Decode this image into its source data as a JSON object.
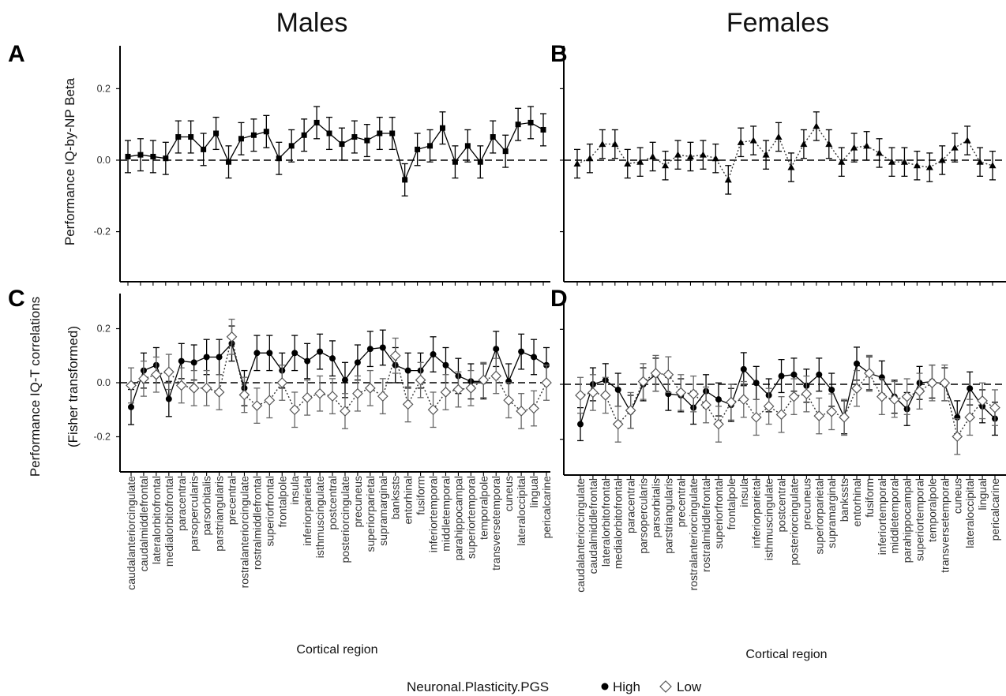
{
  "titles": {
    "left": "Males",
    "right": "Females"
  },
  "panel_letters": [
    "A",
    "B",
    "C",
    "D"
  ],
  "ylabels": {
    "top": "Performance IQ-by-NP Beta",
    "bottom_line1": "Performance IQ-T correlations",
    "bottom_line2": "(Fisher transformed)"
  },
  "xlabel": "Cortical region",
  "legend": {
    "title": "Neuronal.Plasticity.PGS",
    "high": "High",
    "low": "Low"
  },
  "chart_data": [
    {
      "panel": "A",
      "type": "scatter",
      "categories": [
        "caudalanteriorcingulate",
        "caudalmiddlefrontal",
        "lateralorbitofrontal",
        "medialorbitofrontal",
        "paracentral",
        "parsopercularis",
        "parsorbitalis",
        "parstriangularis",
        "precentral",
        "rostralanteriorcingulate",
        "rostralmiddlefrontal",
        "superiorfrontal",
        "frontalpole",
        "insula",
        "inferiorparietal",
        "isthmuscingulate",
        "postcentral",
        "posteriorcingulate",
        "precuneus",
        "superiorparietal",
        "supramarginal",
        "bankssts",
        "entorhinal",
        "fusiform",
        "inferiortemporal",
        "middletemporal",
        "parahippocampal",
        "superiortemporal",
        "temporalpole",
        "transversetemporal",
        "cuneus",
        "lateraloccipital",
        "lingual",
        "pericalcarine"
      ],
      "ylim": [
        -0.34,
        0.32
      ],
      "yticks": [
        -0.2,
        0.0,
        0.2
      ],
      "ytick_labels": [
        "-0.2",
        "0.0",
        "0.2"
      ],
      "series": [
        {
          "marker": "square",
          "line": "solid",
          "values": [
            0.01,
            0.015,
            0.01,
            0.005,
            0.065,
            0.065,
            0.03,
            0.075,
            -0.005,
            0.06,
            0.07,
            0.08,
            0.005,
            0.04,
            0.07,
            0.105,
            0.075,
            0.045,
            0.065,
            0.055,
            0.075,
            0.075,
            -0.055,
            0.03,
            0.04,
            0.09,
            -0.005,
            0.04,
            -0.005,
            0.065,
            0.025,
            0.1,
            0.105,
            0.085
          ],
          "err": 0.045
        }
      ]
    },
    {
      "panel": "B",
      "type": "scatter",
      "categories": [
        "caudalanteriorcingulate",
        "caudalmiddlefrontal",
        "lateralorbitofrontal",
        "medialorbitofrontal",
        "paracentral",
        "parsopercularis",
        "parsorbitalis",
        "parstriangularis",
        "precentral",
        "rostralanteriorcingulate",
        "rostralmiddlefrontal",
        "superiorfrontal",
        "frontalpole",
        "insula",
        "inferiorparietal",
        "isthmuscingulate",
        "postcentral",
        "posteriorcingulate",
        "precuneus",
        "superiorparietal",
        "supramarginal",
        "bankssts",
        "entorhinal",
        "fusiform",
        "inferiortemporal",
        "middletemporal",
        "parahippocampal",
        "superiortemporal",
        "temporalpole",
        "transversetemporal",
        "cuneus",
        "lateraloccipital",
        "lingual",
        "pericalcarine"
      ],
      "ylim": [
        -0.34,
        0.32
      ],
      "series": [
        {
          "marker": "triangle",
          "line": "dotted",
          "values": [
            -0.01,
            0.005,
            0.045,
            0.045,
            -0.01,
            -0.005,
            0.01,
            -0.015,
            0.015,
            0.01,
            0.015,
            0.005,
            -0.055,
            0.05,
            0.055,
            0.015,
            0.065,
            -0.02,
            0.045,
            0.095,
            0.045,
            -0.005,
            0.035,
            0.04,
            0.02,
            -0.005,
            -0.005,
            -0.015,
            -0.02,
            0.0,
            0.035,
            0.055,
            -0.005,
            -0.015
          ],
          "err": 0.04
        }
      ]
    },
    {
      "panel": "C",
      "type": "scatter",
      "categories": [
        "caudalanteriorcingulate",
        "caudalmiddlefrontal",
        "lateralorbitofrontal",
        "medialorbitofrontal",
        "paracentral",
        "parsopercularis",
        "parsorbitalis",
        "parstriangularis",
        "precentral",
        "rostralanteriorcingulate",
        "rostralmiddlefrontal",
        "superiorfrontal",
        "frontalpole",
        "insula",
        "inferiorparietal",
        "isthmuscingulate",
        "postcentral",
        "posteriorcingulate",
        "precuneus",
        "superiorparietal",
        "supramarginal",
        "bankssts",
        "entorhinal",
        "fusiform",
        "inferiortemporal",
        "middletemporal",
        "parahippocampal",
        "superiortemporal",
        "temporalpole",
        "transversetemporal",
        "cuneus",
        "lateraloccipital",
        "lingual",
        "pericalcarine"
      ],
      "ylim": [
        -0.33,
        0.33
      ],
      "yticks": [
        -0.2,
        0.0,
        0.2
      ],
      "ytick_labels": [
        "-0.2",
        "0.0",
        "0.2"
      ],
      "series": [
        {
          "name": "High",
          "marker": "filled-circle",
          "line": "solid",
          "values": [
            -0.09,
            0.045,
            0.065,
            -0.06,
            0.08,
            0.075,
            0.095,
            0.095,
            0.145,
            -0.02,
            0.11,
            0.11,
            0.045,
            0.11,
            0.08,
            0.115,
            0.09,
            0.01,
            0.075,
            0.125,
            0.13,
            0.065,
            0.045,
            0.045,
            0.105,
            0.065,
            0.025,
            0.005,
            0.005,
            0.125,
            0.005,
            0.115,
            0.095,
            0.065
          ],
          "err": 0.065
        },
        {
          "name": "Low",
          "marker": "open-diamond",
          "line": "dotted",
          "values": [
            -0.01,
            0.015,
            0.03,
            0.04,
            -0.01,
            -0.02,
            -0.02,
            -0.035,
            0.17,
            -0.045,
            -0.085,
            -0.065,
            0.0,
            -0.1,
            -0.055,
            -0.04,
            -0.05,
            -0.105,
            -0.04,
            -0.02,
            -0.05,
            0.1,
            -0.08,
            0.01,
            -0.1,
            -0.035,
            -0.025,
            -0.02,
            0.01,
            0.025,
            -0.065,
            -0.105,
            -0.095,
            0.0
          ],
          "err": 0.065
        }
      ]
    },
    {
      "panel": "D",
      "type": "scatter",
      "categories": [
        "caudalanteriorcingulate",
        "caudalmiddlefrontal",
        "lateralorbitofrontal",
        "medialorbitofrontal",
        "paracentral",
        "parsopercularis",
        "parsorbitalis",
        "parstriangularis",
        "precentral",
        "rostralanteriorcingulate",
        "rostralmiddlefrontal",
        "superiorfrontal",
        "frontalpole",
        "insula",
        "inferiorparietal",
        "isthmuscingulate",
        "postcentral",
        "posteriorcingulate",
        "precuneus",
        "superiorparietal",
        "supramarginal",
        "bankssts",
        "entorhinal",
        "fusiform",
        "inferiortemporal",
        "middletemporal",
        "parahippocampal",
        "superiortemporal",
        "temporalpole",
        "transversetemporal",
        "cuneus",
        "lateraloccipital",
        "lingual",
        "pericalcarine"
      ],
      "ylim": [
        -0.33,
        0.33
      ],
      "series": [
        {
          "name": "High",
          "marker": "filled-circle",
          "line": "solid",
          "values": [
            -0.145,
            0.0,
            0.015,
            -0.02,
            -0.1,
            0.0,
            0.035,
            -0.035,
            -0.04,
            -0.085,
            -0.025,
            -0.055,
            -0.075,
            0.055,
            0.005,
            -0.04,
            0.03,
            0.035,
            -0.005,
            0.035,
            -0.02,
            -0.12,
            0.075,
            0.04,
            0.025,
            -0.045,
            -0.09,
            0.005,
            0.01,
            0.0,
            -0.12,
            -0.015,
            -0.08,
            -0.125
          ],
          "err": 0.06
        },
        {
          "name": "Low",
          "marker": "open-diamond",
          "line": "dotted",
          "values": [
            -0.04,
            -0.03,
            -0.04,
            -0.145,
            -0.095,
            0.01,
            0.04,
            0.035,
            -0.03,
            -0.035,
            -0.075,
            -0.145,
            -0.065,
            -0.055,
            -0.12,
            -0.08,
            -0.11,
            -0.045,
            -0.035,
            -0.115,
            -0.1,
            -0.12,
            -0.015,
            0.04,
            -0.045,
            -0.055,
            -0.045,
            -0.025,
            0.005,
            0.005,
            -0.19,
            -0.12,
            -0.06,
            -0.085
          ],
          "err": 0.065
        }
      ]
    }
  ]
}
